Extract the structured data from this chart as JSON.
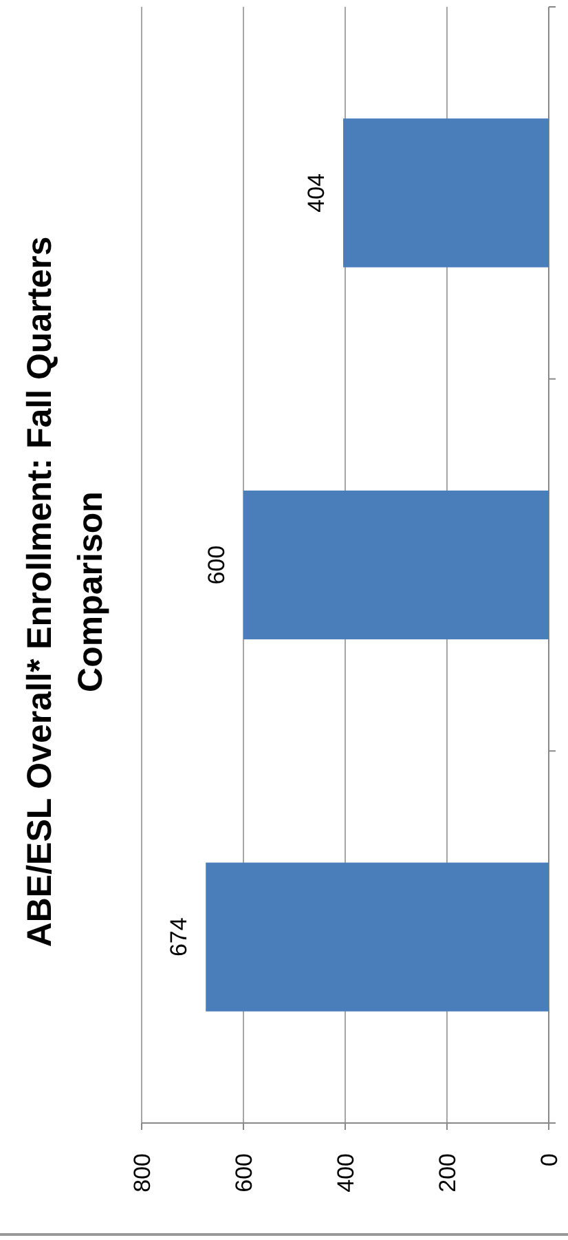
{
  "chart_data": {
    "type": "bar",
    "orientation": "horizontal",
    "title": "ABE/ESL Overall* Enrollment: Fall Quarters Comparison",
    "categories": [
      null,
      null,
      null
    ],
    "values": [
      404,
      600,
      674
    ],
    "color": "#4a7ebb",
    "xlim": [
      800,
      0
    ],
    "xticks": [
      800,
      600,
      400,
      200,
      0
    ],
    "grid": "x",
    "data_labels": true
  }
}
